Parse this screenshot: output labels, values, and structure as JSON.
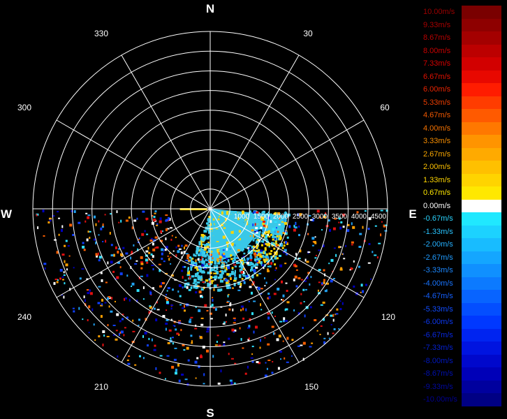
{
  "radar": {
    "cardinals": {
      "north": "N",
      "east": "E",
      "south": "S",
      "west": "W"
    },
    "azimuth_labels": [
      "30",
      "60",
      "120",
      "150",
      "210",
      "240",
      "300",
      "330"
    ],
    "range_labels": [
      "1000",
      "1500",
      "2000",
      "2500",
      "3000",
      "3500",
      "4000",
      "4500"
    ],
    "echo_colors": {
      "near_positive": "#ffd400",
      "near_negative": "#39c8e8",
      "scatter": [
        "#e01010",
        "#1040ff",
        "#20a0f0",
        "#ffa000",
        "#30e0ff",
        "#ffffff",
        "#0000c0",
        "#ff6000"
      ]
    }
  },
  "colorbar": {
    "items": [
      {
        "label": "10.00m/s",
        "color": "#7a0000",
        "text_color": "#9b0000"
      },
      {
        "label": "9.33m/s",
        "color": "#8e0000",
        "text_color": "#a80000"
      },
      {
        "label": "8.67m/s",
        "color": "#a40000",
        "text_color": "#b80000"
      },
      {
        "label": "8.00m/s",
        "color": "#bc0000",
        "text_color": "#c80000"
      },
      {
        "label": "7.33m/s",
        "color": "#d20000",
        "text_color": "#d80000"
      },
      {
        "label": "6.67m/s",
        "color": "#e80800",
        "text_color": "#e21000"
      },
      {
        "label": "6.00m/s",
        "color": "#ff1c00",
        "text_color": "#ea2400"
      },
      {
        "label": "5.33m/s",
        "color": "#ff3c00",
        "text_color": "#ef3e00"
      },
      {
        "label": "4.67m/s",
        "color": "#ff5a00",
        "text_color": "#f25800"
      },
      {
        "label": "4.00m/s",
        "color": "#ff7800",
        "text_color": "#f57200"
      },
      {
        "label": "3.33m/s",
        "color": "#ff9400",
        "text_color": "#f88e00"
      },
      {
        "label": "2.67m/s",
        "color": "#ffaa00",
        "text_color": "#faa800"
      },
      {
        "label": "2.00m/s",
        "color": "#ffc000",
        "text_color": "#fcc000"
      },
      {
        "label": "1.33m/s",
        "color": "#ffd400",
        "text_color": "#fdd400"
      },
      {
        "label": "0.67m/s",
        "color": "#ffe800",
        "text_color": "#ffe800"
      },
      {
        "label": "0.00m/s",
        "color": "#ffffff",
        "text_color": "#ffffff"
      },
      {
        "label": "-0.67m/s",
        "color": "#20e8ff",
        "text_color": "#2ad4ff"
      },
      {
        "label": "-1.33m/s",
        "color": "#1cd2ff",
        "text_color": "#28c4ff"
      },
      {
        "label": "-2.00m/s",
        "color": "#18bcff",
        "text_color": "#24b0ff"
      },
      {
        "label": "-2.67m/s",
        "color": "#14a6ff",
        "text_color": "#209cff"
      },
      {
        "label": "-3.33m/s",
        "color": "#1090ff",
        "text_color": "#1c88ff"
      },
      {
        "label": "-4.00m/s",
        "color": "#0c7aff",
        "text_color": "#1874ff"
      },
      {
        "label": "-4.67m/s",
        "color": "#0864ff",
        "text_color": "#1460ff"
      },
      {
        "label": "-5.33m/s",
        "color": "#044eff",
        "text_color": "#104cff"
      },
      {
        "label": "-6.00m/s",
        "color": "#0038ff",
        "text_color": "#0c38f0"
      },
      {
        "label": "-6.67m/s",
        "color": "#0024f0",
        "text_color": "#0828e0"
      },
      {
        "label": "-7.33m/s",
        "color": "#0014e0",
        "text_color": "#0420d0"
      },
      {
        "label": "-8.00m/s",
        "color": "#0008cc",
        "text_color": "#0018c0"
      },
      {
        "label": "-8.67m/s",
        "color": "#0000b8",
        "text_color": "#0010b0"
      },
      {
        "label": "-9.33m/s",
        "color": "#00009e",
        "text_color": "#0008a0"
      },
      {
        "label": "-10.00m/s",
        "color": "#000084",
        "text_color": "#000090"
      }
    ]
  }
}
